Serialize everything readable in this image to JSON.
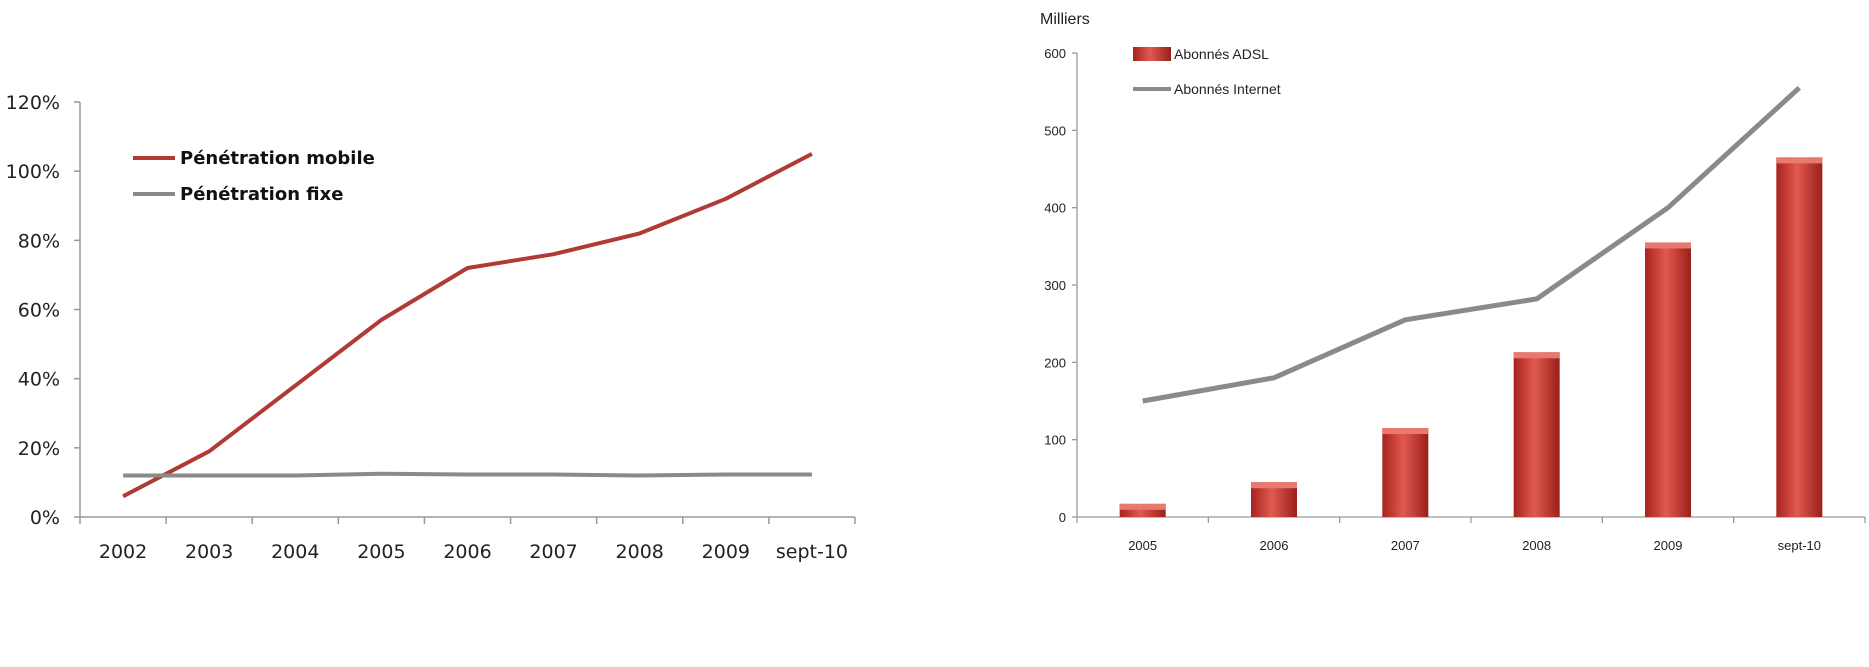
{
  "chart_data": [
    {
      "type": "line",
      "title": "",
      "xlabel": "",
      "ylabel": "",
      "categories": [
        "2002",
        "2003",
        "2004",
        "2005",
        "2006",
        "2007",
        "2008",
        "2009",
        "sept-10"
      ],
      "ylim": [
        0,
        120
      ],
      "yticks": [
        "0%",
        "20%",
        "40%",
        "60%",
        "80%",
        "100%",
        "120%"
      ],
      "legend_position": "top-left",
      "grid": false,
      "series": [
        {
          "name": "Pénétration mobile",
          "color": "#b03a34",
          "values": [
            6,
            19,
            38,
            57,
            72,
            76,
            82,
            92,
            105
          ]
        },
        {
          "name": "Pénétration fixe",
          "color": "#8a8a8a",
          "values": [
            12,
            12,
            12,
            12.5,
            12.3,
            12.3,
            12,
            12.3,
            12.3
          ]
        }
      ]
    },
    {
      "type": "bar",
      "title": "",
      "xlabel": "",
      "ylabel": "Milliers",
      "categories": [
        "2005",
        "2006",
        "2007",
        "2008",
        "2009",
        "sept-10"
      ],
      "ylim": [
        0,
        600
      ],
      "yticks": [
        "0",
        "100",
        "200",
        "300",
        "400",
        "500",
        "600"
      ],
      "legend_position": "top-left",
      "grid": false,
      "series": [
        {
          "name": "Abonnés ADSL",
          "kind": "bar",
          "color": "#c4302b",
          "values": [
            17,
            45,
            115,
            213,
            355,
            465
          ]
        },
        {
          "name": "Abonnés Internet",
          "kind": "line",
          "color": "#8a8a8a",
          "values": [
            150,
            180,
            255,
            282,
            400,
            555
          ]
        }
      ]
    }
  ]
}
